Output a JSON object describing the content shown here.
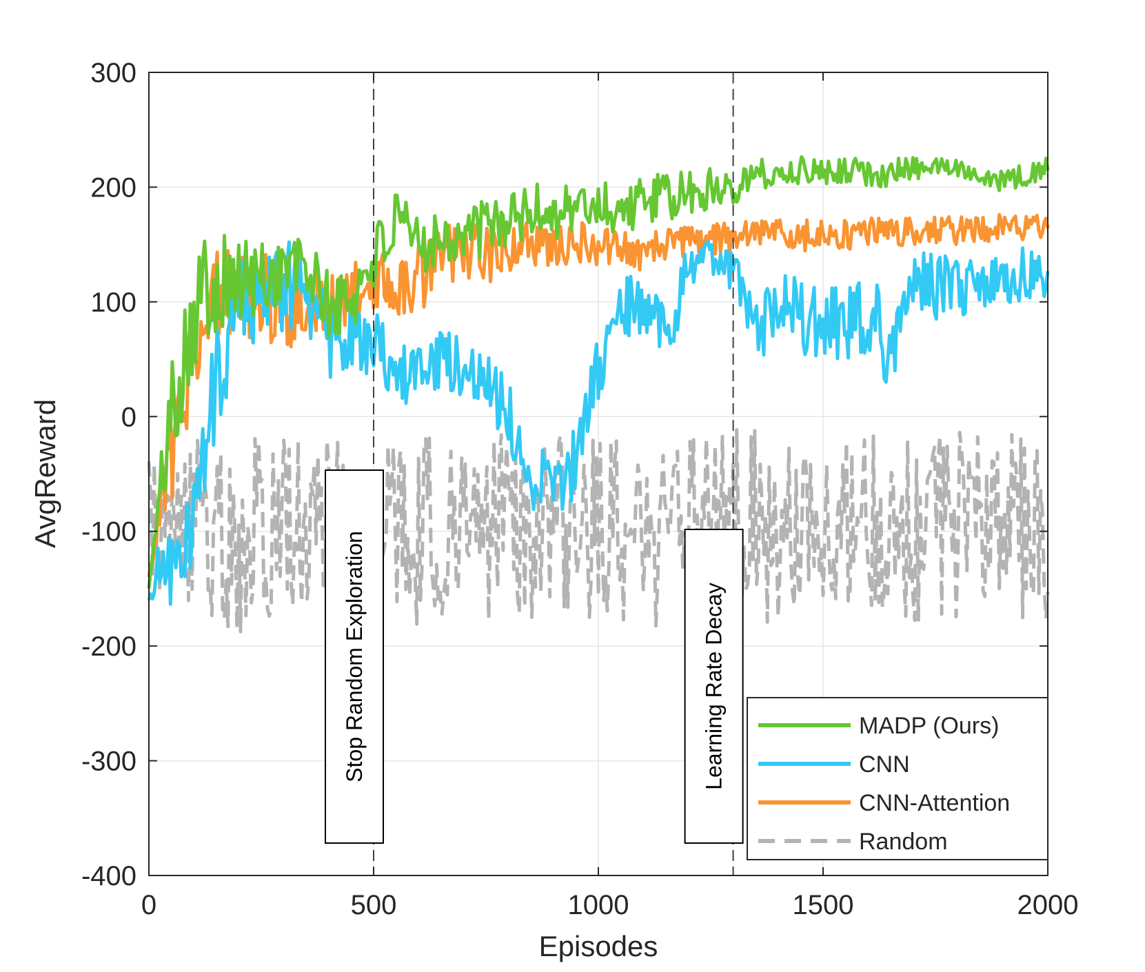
{
  "chart_data": {
    "type": "line",
    "title": "",
    "xlabel": "Episodes",
    "ylabel": "AvgReward",
    "xlim": [
      0,
      2000
    ],
    "ylim": [
      -400,
      300
    ],
    "xticks": [
      0,
      500,
      1000,
      1500,
      2000
    ],
    "xtick_labels": [
      "0",
      "500",
      "1000",
      "1500",
      "2000"
    ],
    "yticks": [
      -400,
      -300,
      -200,
      -100,
      0,
      100,
      200,
      300
    ],
    "ytick_labels": [
      "-400",
      "-300",
      "-200",
      "-100",
      "0",
      "100",
      "200",
      "300"
    ],
    "grid": true,
    "legend_position": "bottom-right",
    "annotations": [
      {
        "x": 500,
        "text": "Stop Random Exploration"
      },
      {
        "x": 1300,
        "text": "Learning Rate Decay"
      }
    ],
    "series": [
      {
        "name": "MADP (Ours)",
        "color": "#66c733",
        "style": "solid",
        "points": [
          [
            0,
            -150
          ],
          [
            30,
            -50
          ],
          [
            60,
            30
          ],
          [
            90,
            80
          ],
          [
            120,
            110
          ],
          [
            150,
            120
          ],
          [
            200,
            115
          ],
          [
            250,
            120
          ],
          [
            300,
            130
          ],
          [
            350,
            130
          ],
          [
            400,
            95
          ],
          [
            450,
            100
          ],
          [
            500,
            140
          ],
          [
            550,
            165
          ],
          [
            600,
            150
          ],
          [
            650,
            160
          ],
          [
            700,
            158
          ],
          [
            750,
            165
          ],
          [
            800,
            172
          ],
          [
            850,
            178
          ],
          [
            900,
            180
          ],
          [
            950,
            182
          ],
          [
            1000,
            185
          ],
          [
            1050,
            180
          ],
          [
            1100,
            188
          ],
          [
            1150,
            190
          ],
          [
            1200,
            193
          ],
          [
            1250,
            198
          ],
          [
            1300,
            205
          ],
          [
            1350,
            210
          ],
          [
            1400,
            212
          ],
          [
            1450,
            215
          ],
          [
            1500,
            214
          ],
          [
            1550,
            216
          ],
          [
            1600,
            212
          ],
          [
            1650,
            213
          ],
          [
            1700,
            216
          ],
          [
            1750,
            218
          ],
          [
            1800,
            217
          ],
          [
            1850,
            212
          ],
          [
            1900,
            205
          ],
          [
            1950,
            210
          ],
          [
            2000,
            218
          ]
        ],
        "noise": [
          0,
          30,
          60,
          55,
          50,
          45,
          40,
          40,
          35,
          30,
          30,
          32,
          30,
          30,
          28,
          28,
          25,
          25,
          25,
          25,
          25,
          25,
          25,
          22,
          22,
          22,
          22,
          20,
          20,
          15,
          12,
          12,
          12,
          12,
          14,
          12,
          10,
          8,
          8,
          8,
          10,
          10,
          8
        ]
      },
      {
        "name": "CNN",
        "color": "#33c9f5",
        "style": "solid",
        "points": [
          [
            0,
            -160
          ],
          [
            30,
            -120
          ],
          [
            60,
            -140
          ],
          [
            90,
            -100
          ],
          [
            120,
            -40
          ],
          [
            150,
            30
          ],
          [
            200,
            90
          ],
          [
            250,
            110
          ],
          [
            300,
            120
          ],
          [
            350,
            105
          ],
          [
            400,
            60
          ],
          [
            450,
            70
          ],
          [
            500,
            65
          ],
          [
            550,
            30
          ],
          [
            600,
            45
          ],
          [
            650,
            50
          ],
          [
            700,
            40
          ],
          [
            750,
            35
          ],
          [
            800,
            0
          ],
          [
            850,
            -50
          ],
          [
            900,
            -60
          ],
          [
            950,
            -40
          ],
          [
            1000,
            40
          ],
          [
            1050,
            100
          ],
          [
            1100,
            90
          ],
          [
            1150,
            70
          ],
          [
            1200,
            130
          ],
          [
            1250,
            140
          ],
          [
            1300,
            120
          ],
          [
            1350,
            70
          ],
          [
            1400,
            100
          ],
          [
            1450,
            90
          ],
          [
            1500,
            85
          ],
          [
            1550,
            80
          ],
          [
            1600,
            90
          ],
          [
            1650,
            60
          ],
          [
            1700,
            120
          ],
          [
            1750,
            110
          ],
          [
            1800,
            115
          ],
          [
            1850,
            110
          ],
          [
            1900,
            120
          ],
          [
            1950,
            125
          ],
          [
            2000,
            115
          ]
        ],
        "noise": [
          0,
          40,
          40,
          45,
          45,
          50,
          50,
          50,
          45,
          40,
          35,
          30,
          30,
          30,
          30,
          28,
          28,
          28,
          30,
          30,
          30,
          30,
          30,
          30,
          25,
          40,
          20,
          15,
          25,
          30,
          30,
          35,
          35,
          35,
          35,
          40,
          30,
          30,
          25,
          25,
          25,
          25,
          20
        ]
      },
      {
        "name": "CNN-Attention",
        "color": "#fa9432",
        "style": "solid",
        "points": [
          [
            0,
            -140
          ],
          [
            30,
            -60
          ],
          [
            60,
            -20
          ],
          [
            90,
            40
          ],
          [
            120,
            100
          ],
          [
            150,
            110
          ],
          [
            200,
            105
          ],
          [
            250,
            110
          ],
          [
            300,
            95
          ],
          [
            350,
            100
          ],
          [
            400,
            90
          ],
          [
            450,
            110
          ],
          [
            500,
            120
          ],
          [
            550,
            110
          ],
          [
            600,
            120
          ],
          [
            650,
            140
          ],
          [
            700,
            145
          ],
          [
            750,
            140
          ],
          [
            800,
            150
          ],
          [
            850,
            150
          ],
          [
            900,
            155
          ],
          [
            950,
            150
          ],
          [
            1000,
            150
          ],
          [
            1050,
            148
          ],
          [
            1100,
            145
          ],
          [
            1150,
            148
          ],
          [
            1200,
            150
          ],
          [
            1250,
            152
          ],
          [
            1300,
            155
          ],
          [
            1350,
            158
          ],
          [
            1400,
            160
          ],
          [
            1450,
            158
          ],
          [
            1500,
            160
          ],
          [
            1550,
            158
          ],
          [
            1600,
            162
          ],
          [
            1650,
            160
          ],
          [
            1700,
            162
          ],
          [
            1750,
            163
          ],
          [
            1800,
            162
          ],
          [
            1850,
            163
          ],
          [
            1900,
            165
          ],
          [
            1950,
            165
          ],
          [
            2000,
            168
          ]
        ],
        "noise": [
          0,
          40,
          45,
          45,
          45,
          40,
          40,
          40,
          38,
          36,
          34,
          32,
          30,
          30,
          30,
          28,
          26,
          26,
          24,
          22,
          22,
          20,
          20,
          18,
          18,
          18,
          16,
          16,
          15,
          15,
          14,
          14,
          14,
          13,
          13,
          13,
          12,
          12,
          12,
          12,
          12,
          12,
          12
        ]
      },
      {
        "name": "Random",
        "color": "#b3b3b3",
        "style": "dashed",
        "points": [
          [
            0,
            -80
          ],
          [
            50,
            -90
          ],
          [
            100,
            -95
          ],
          [
            150,
            -100
          ],
          [
            200,
            -105
          ],
          [
            250,
            -100
          ],
          [
            300,
            -95
          ],
          [
            350,
            -100
          ],
          [
            400,
            -95
          ],
          [
            450,
            -95
          ],
          [
            500,
            -90
          ],
          [
            550,
            -95
          ],
          [
            600,
            -100
          ],
          [
            650,
            -95
          ],
          [
            700,
            -95
          ],
          [
            750,
            -100
          ],
          [
            800,
            -100
          ],
          [
            850,
            -105
          ],
          [
            900,
            -100
          ],
          [
            950,
            -100
          ],
          [
            1000,
            -95
          ],
          [
            1050,
            -100
          ],
          [
            1100,
            -100
          ],
          [
            1150,
            -100
          ],
          [
            1200,
            -95
          ],
          [
            1250,
            -100
          ],
          [
            1300,
            -95
          ],
          [
            1350,
            -95
          ],
          [
            1400,
            -100
          ],
          [
            1450,
            -95
          ],
          [
            1500,
            -95
          ],
          [
            1550,
            -95
          ],
          [
            1600,
            -95
          ],
          [
            1650,
            -95
          ],
          [
            1700,
            -95
          ],
          [
            1750,
            -95
          ],
          [
            1800,
            -90
          ],
          [
            1850,
            -95
          ],
          [
            1900,
            -95
          ],
          [
            1950,
            -90
          ],
          [
            2000,
            -95
          ]
        ],
        "noise": [
          60,
          70,
          75,
          80,
          85,
          85,
          85,
          85,
          85,
          85,
          85,
          85,
          85,
          85,
          85,
          85,
          85,
          85,
          85,
          85,
          85,
          85,
          85,
          85,
          85,
          85,
          85,
          85,
          85,
          85,
          85,
          85,
          85,
          85,
          85,
          85,
          85,
          85,
          85,
          85,
          85
        ]
      }
    ]
  }
}
